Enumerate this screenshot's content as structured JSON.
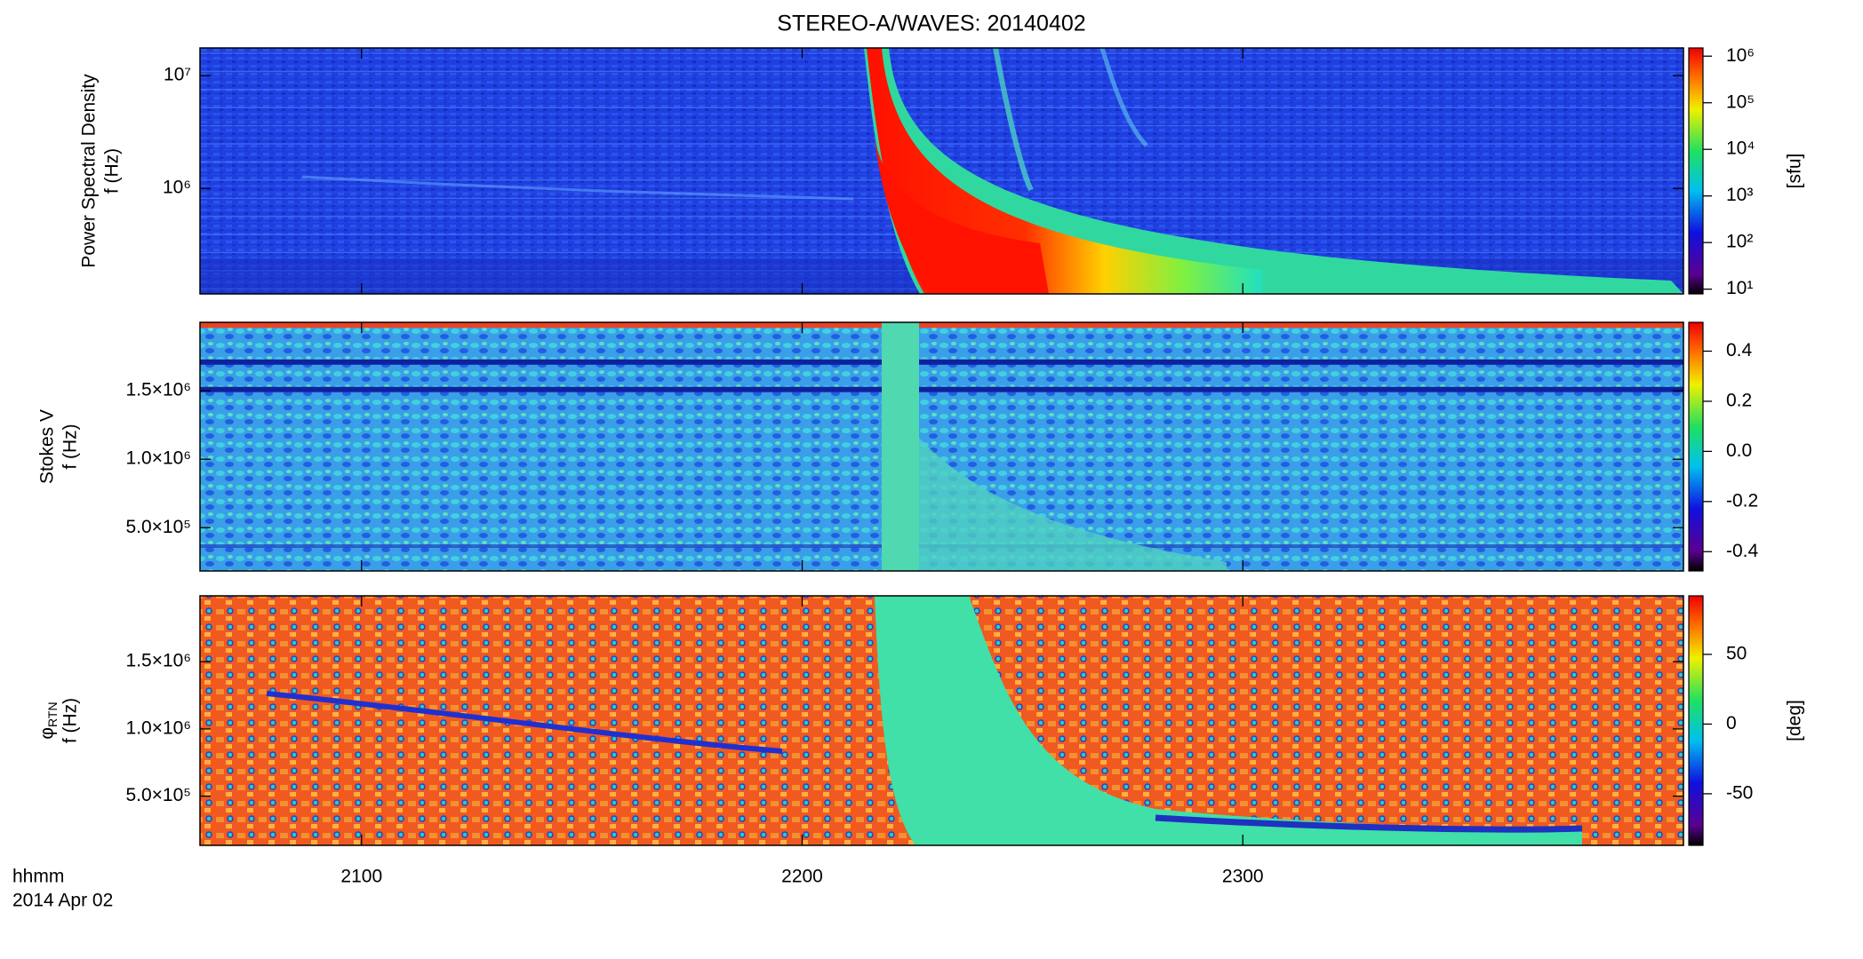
{
  "chart_data": [
    {
      "type": "heatmap",
      "title": "STEREO-A/WAVES: 20140402",
      "ylabel": [
        "Power Spectral Density",
        "f (Hz)"
      ],
      "ylog": true,
      "ylim": [
        116000,
        17600000
      ],
      "yticks": [
        {
          "value": 1000000,
          "label": "10⁶"
        },
        {
          "value": 10000000,
          "label": "10⁷"
        }
      ],
      "zlog": true,
      "zlim": [
        7.9,
        1500000
      ],
      "zticks": [
        {
          "value": 10,
          "label": "10¹"
        },
        {
          "value": 100,
          "label": "10²"
        },
        {
          "value": 1000,
          "label": "10³"
        },
        {
          "value": 10000,
          "label": "10⁴"
        },
        {
          "value": 100000,
          "label": "10⁵"
        },
        {
          "value": 1000000,
          "label": "10⁶"
        }
      ],
      "zlabel": "[sfu]"
    },
    {
      "type": "heatmap",
      "ylabel": [
        "Stokes V",
        "f (Hz)"
      ],
      "ylim": [
        184000,
        2000000
      ],
      "yticks": [
        {
          "value": 500000,
          "label": "5.0×10⁵"
        },
        {
          "value": 1000000,
          "label": "1.0×10⁶"
        },
        {
          "value": 1500000,
          "label": "1.5×10⁶"
        }
      ],
      "zlim": [
        -0.477,
        0.515
      ],
      "zticks": [
        -0.4,
        -0.2,
        {
          "value": 0,
          "label": "0.0"
        },
        0.2,
        0.4
      ]
    },
    {
      "type": "heatmap",
      "ylabel": [
        "φ",
        "f (Hz)"
      ],
      "ylabel_subscript": "RTN",
      "ylim": [
        134000,
        1990000
      ],
      "yticks": [
        {
          "value": 500000,
          "label": "5.0×10⁵"
        },
        {
          "value": 1000000,
          "label": "1.0×10⁶"
        },
        {
          "value": 1500000,
          "label": "1.5×10⁶"
        }
      ],
      "zlim": [
        -87,
        92
      ],
      "zticks": [
        -50,
        0,
        50
      ],
      "zlabel": "[deg]",
      "xlim": [
        1238,
        1440
      ],
      "xticks": [
        {
          "value": 1260,
          "label": "2100"
        },
        {
          "value": 1320,
          "label": "2200"
        },
        {
          "value": 1380,
          "label": "2300"
        }
      ],
      "xlabel": [
        "hhmm",
        "2014 Apr 02"
      ]
    }
  ]
}
